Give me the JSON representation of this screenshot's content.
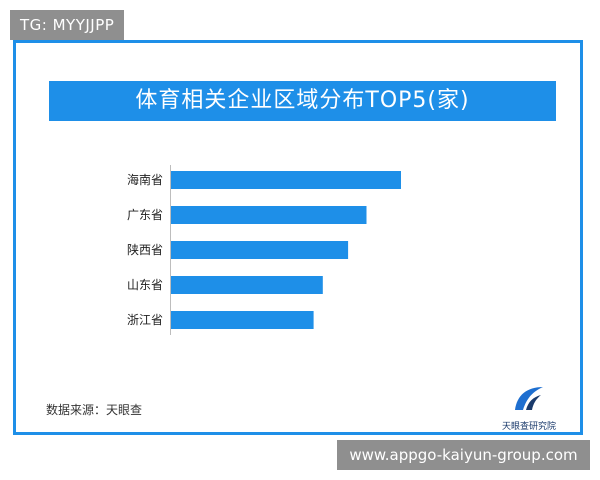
{
  "watermark_top": "TG: MYYJJPP",
  "watermark_bottom": "www.appgo-kaiyun-group.com",
  "source_text": "数据来源：天眼查",
  "logo_text": "天眼查研究院",
  "colors": {
    "accent": "#1e8fe8",
    "tag": "#8f8f8f"
  },
  "chart_data": {
    "type": "bar",
    "orientation": "horizontal",
    "title": "体育相关企业区域分布TOP5(家)",
    "categories": [
      "海南省",
      "广东省",
      "陕西省",
      "山东省",
      "浙江省"
    ],
    "values": [
      100,
      85,
      77,
      66,
      62
    ],
    "xlim": [
      0,
      100
    ],
    "grid": false,
    "legend": "none"
  }
}
